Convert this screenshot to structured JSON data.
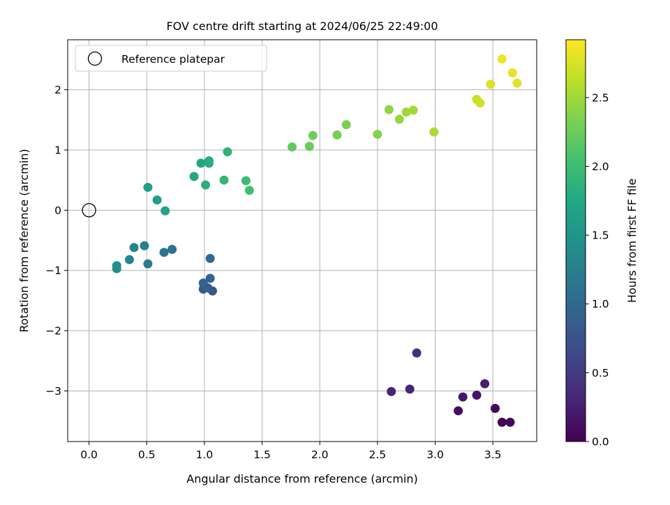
{
  "chart_data": {
    "type": "scatter",
    "title": "FOV centre drift starting at 2024/06/25 22:49:00",
    "xlabel": "Angular distance from reference (arcmin)",
    "ylabel": "Rotation from reference (arcmin)",
    "xlim": [
      -0.185,
      3.88
    ],
    "ylim": [
      -3.84,
      2.83
    ],
    "xticks": [
      0.0,
      0.5,
      1.0,
      1.5,
      2.0,
      2.5,
      3.0,
      3.5
    ],
    "xtick_labels": [
      "0.0",
      "0.5",
      "1.0",
      "1.5",
      "2.0",
      "2.5",
      "3.0",
      "3.5"
    ],
    "yticks": [
      -3,
      -2,
      -1,
      0,
      1,
      2
    ],
    "ytick_labels": [
      "−3",
      "−2",
      "−1",
      "0",
      "1",
      "2"
    ],
    "grid": true,
    "legend": {
      "location": "upper-left",
      "entries": [
        {
          "label": "Reference platepar",
          "marker": "open-circle"
        }
      ]
    },
    "reference_point": {
      "x": 0.0,
      "y": 0.0
    },
    "colormap": "viridis",
    "colorbar": {
      "label": "Hours from first FF file",
      "range": [
        0.0,
        2.92
      ],
      "ticks": [
        0.0,
        0.5,
        1.0,
        1.5,
        2.0,
        2.5
      ],
      "tick_labels": [
        "0.0",
        "0.5",
        "1.0",
        "1.5",
        "2.0",
        "2.5"
      ]
    },
    "points": [
      {
        "x": 3.58,
        "y": -3.52,
        "hours": 0.0
      },
      {
        "x": 3.65,
        "y": -3.52,
        "hours": 0.03
      },
      {
        "x": 3.52,
        "y": -3.29,
        "hours": 0.07
      },
      {
        "x": 3.2,
        "y": -3.33,
        "hours": 0.11
      },
      {
        "x": 3.36,
        "y": -3.07,
        "hours": 0.15
      },
      {
        "x": 3.24,
        "y": -3.1,
        "hours": 0.19
      },
      {
        "x": 3.43,
        "y": -2.88,
        "hours": 0.23
      },
      {
        "x": 2.62,
        "y": -3.01,
        "hours": 0.28
      },
      {
        "x": 2.78,
        "y": -2.97,
        "hours": 0.33
      },
      {
        "x": 2.84,
        "y": -2.37,
        "hours": 0.38
      },
      {
        "x": 1.07,
        "y": -1.34,
        "hours": 0.78
      },
      {
        "x": 0.99,
        "y": -1.31,
        "hours": 0.82
      },
      {
        "x": 1.03,
        "y": -1.29,
        "hours": 0.86
      },
      {
        "x": 0.99,
        "y": -1.21,
        "hours": 0.9
      },
      {
        "x": 1.05,
        "y": -1.13,
        "hours": 0.94
      },
      {
        "x": 1.05,
        "y": -0.8,
        "hours": 0.98
      },
      {
        "x": 0.72,
        "y": -0.65,
        "hours": 1.1
      },
      {
        "x": 0.65,
        "y": -0.7,
        "hours": 1.14
      },
      {
        "x": 0.51,
        "y": -0.89,
        "hours": 1.2
      },
      {
        "x": 0.48,
        "y": -0.59,
        "hours": 1.25
      },
      {
        "x": 0.39,
        "y": -0.62,
        "hours": 1.29
      },
      {
        "x": 0.35,
        "y": -0.82,
        "hours": 1.33
      },
      {
        "x": 0.24,
        "y": -0.97,
        "hours": 1.4
      },
      {
        "x": 0.24,
        "y": -0.92,
        "hours": 1.44
      },
      {
        "x": 0.51,
        "y": 0.38,
        "hours": 1.62
      },
      {
        "x": 0.59,
        "y": 0.17,
        "hours": 1.65
      },
      {
        "x": 0.66,
        "y": -0.01,
        "hours": 1.68
      },
      {
        "x": 0.97,
        "y": 0.78,
        "hours": 1.72
      },
      {
        "x": 0.91,
        "y": 0.56,
        "hours": 1.75
      },
      {
        "x": 1.04,
        "y": 0.82,
        "hours": 1.78
      },
      {
        "x": 1.04,
        "y": 0.78,
        "hours": 1.8
      },
      {
        "x": 1.01,
        "y": 0.42,
        "hours": 1.84
      },
      {
        "x": 1.2,
        "y": 0.97,
        "hours": 1.88
      },
      {
        "x": 1.17,
        "y": 0.5,
        "hours": 1.92
      },
      {
        "x": 1.36,
        "y": 0.49,
        "hours": 1.97
      },
      {
        "x": 1.39,
        "y": 0.33,
        "hours": 2.02
      },
      {
        "x": 1.76,
        "y": 1.05,
        "hours": 2.2
      },
      {
        "x": 1.91,
        "y": 1.06,
        "hours": 2.24
      },
      {
        "x": 1.94,
        "y": 1.24,
        "hours": 2.28
      },
      {
        "x": 2.15,
        "y": 1.25,
        "hours": 2.3
      },
      {
        "x": 2.23,
        "y": 1.42,
        "hours": 2.33
      },
      {
        "x": 2.5,
        "y": 1.26,
        "hours": 2.37
      },
      {
        "x": 2.6,
        "y": 1.67,
        "hours": 2.42
      },
      {
        "x": 2.69,
        "y": 1.51,
        "hours": 2.45
      },
      {
        "x": 2.75,
        "y": 1.63,
        "hours": 2.48
      },
      {
        "x": 2.81,
        "y": 1.66,
        "hours": 2.51
      },
      {
        "x": 2.99,
        "y": 1.3,
        "hours": 2.55
      },
      {
        "x": 3.36,
        "y": 1.84,
        "hours": 2.68
      },
      {
        "x": 3.39,
        "y": 1.78,
        "hours": 2.71
      },
      {
        "x": 3.48,
        "y": 2.09,
        "hours": 2.76
      },
      {
        "x": 3.58,
        "y": 2.51,
        "hours": 2.86
      },
      {
        "x": 3.67,
        "y": 2.28,
        "hours": 2.82
      },
      {
        "x": 3.71,
        "y": 2.11,
        "hours": 2.79
      }
    ]
  }
}
